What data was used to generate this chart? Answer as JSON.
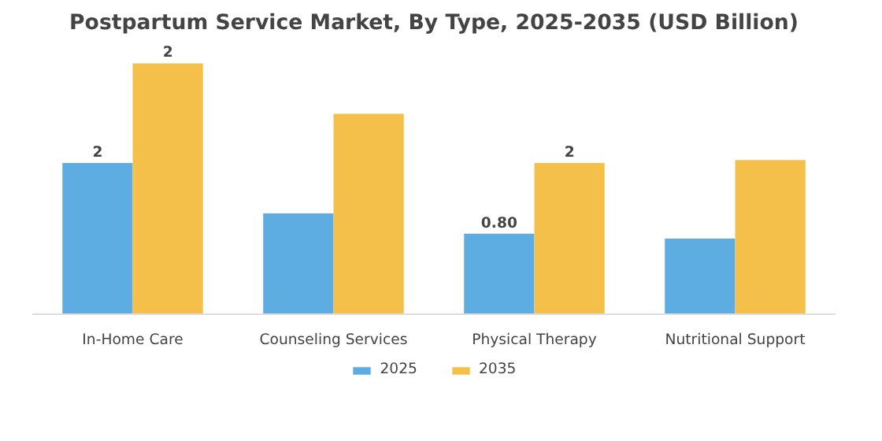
{
  "chart_data": {
    "type": "bar",
    "title": "Postpartum Service Market, By Type, 2025-2035 (USD Billion)",
    "categories": [
      "In-Home Care",
      "Counseling Services",
      "Physical Therapy",
      "Nutritional Support"
    ],
    "series": [
      {
        "name": "2025",
        "color": "#5dade2",
        "values": [
          1.5,
          1.0,
          0.8,
          0.75
        ],
        "value_labels": [
          "2",
          null,
          "0.80",
          null
        ]
      },
      {
        "name": "2035",
        "color": "#f5c04a",
        "values": [
          2.49,
          1.99,
          1.5,
          1.53
        ],
        "value_labels": [
          "2",
          null,
          "2",
          null
        ]
      }
    ],
    "legend": "bottom"
  }
}
